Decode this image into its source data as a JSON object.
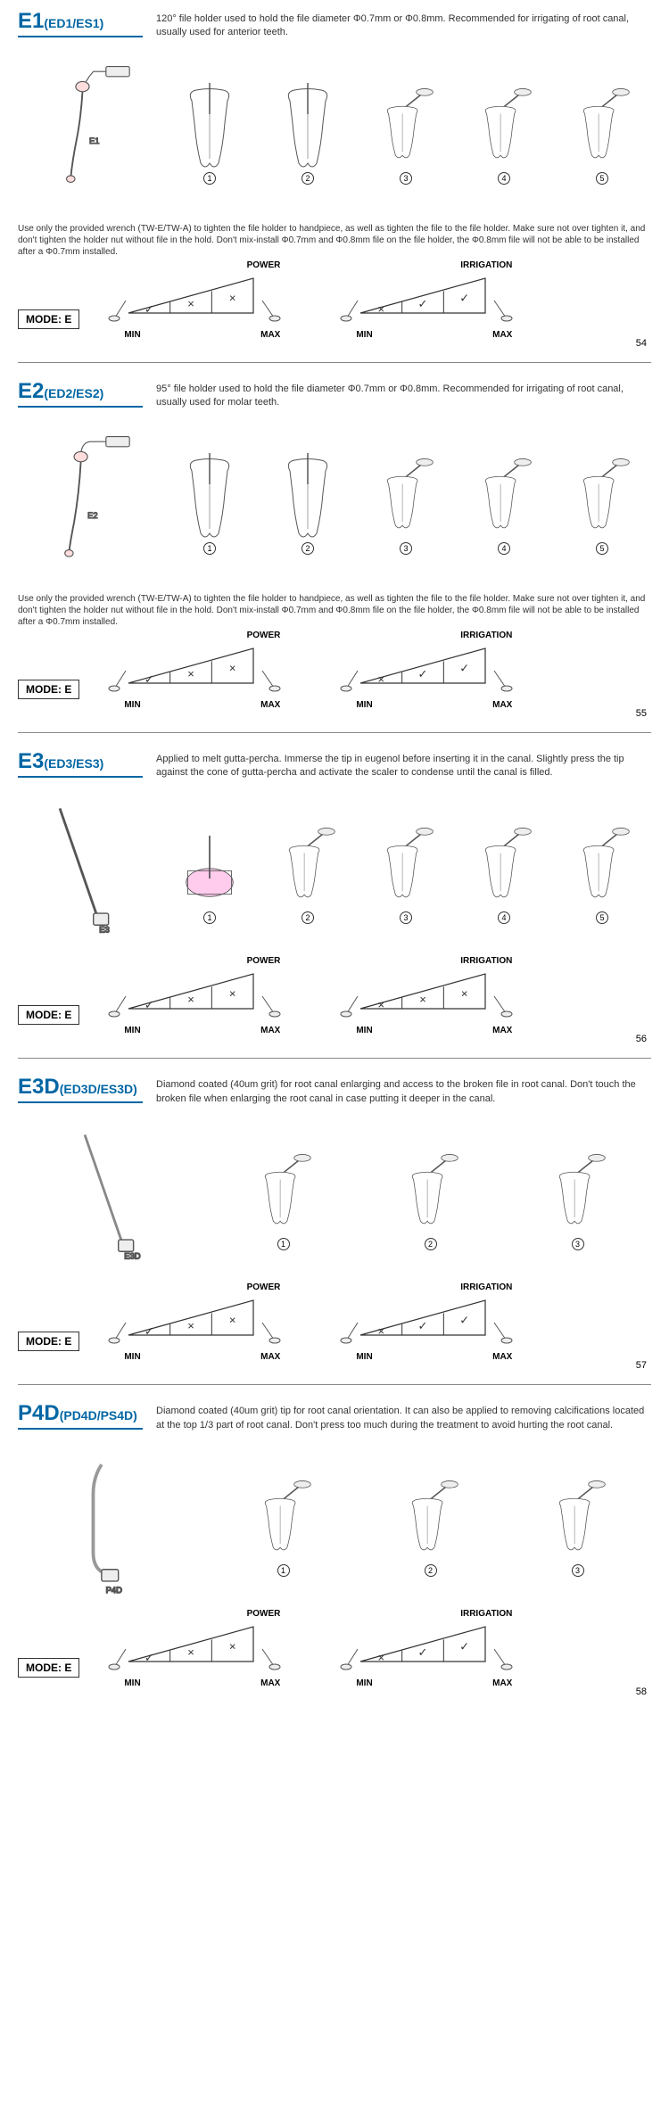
{
  "sections": [
    {
      "id": "e1",
      "title_main": "E1",
      "title_sub": "(ED1/ES1)",
      "description": "120° file holder used to hold the file diameter Φ0.7mm or Φ0.8mm. Recommended for irrigating of root canal, usually used for anterior teeth.",
      "tip_label": "E1",
      "steps": [
        1,
        2,
        3,
        4,
        5
      ],
      "warning": "Use only the provided wrench (TW-E/TW-A) to tighten the file holder to handpiece, as well as tighten the file to the file holder.\nMake sure not over tighten it, and don't tighten the holder nut without file in the hold.\nDon't mix-install Φ0.7mm and Φ0.8mm file on the file holder, the Φ0.8mm file will not be able to be installed after a Φ0.7mm installed.",
      "mode": "MODE: E",
      "power_label": "POWER",
      "irrigation_label": "IRRIGATION",
      "min_label": "MIN",
      "max_label": "MAX",
      "power_marks": [
        "✓",
        "×",
        "×"
      ],
      "irrigation_marks": [
        "×",
        "✓",
        "✓"
      ],
      "page": "54"
    },
    {
      "id": "e2",
      "title_main": "E2",
      "title_sub": "(ED2/ES2)",
      "description": "95° file holder used to hold the file diameter Φ0.7mm or Φ0.8mm. Recommended for irrigating of root canal, usually used for molar teeth.",
      "tip_label": "E2",
      "steps": [
        1,
        2,
        3,
        4,
        5
      ],
      "warning": "Use only the provided wrench (TW-E/TW-A) to tighten the file holder to handpiece, as well as tighten the file to the file holder.\nMake sure not over tighten it, and don't tighten the holder nut without file in the hold.\nDon't mix-install Φ0.7mm and Φ0.8mm file on the file holder, the Φ0.8mm file will not be able to be installed after a Φ0.7mm installed.",
      "mode": "MODE: E",
      "power_label": "POWER",
      "irrigation_label": "IRRIGATION",
      "min_label": "MIN",
      "max_label": "MAX",
      "power_marks": [
        "✓",
        "×",
        "×"
      ],
      "irrigation_marks": [
        "×",
        "✓",
        "✓"
      ],
      "page": "55"
    },
    {
      "id": "e3",
      "title_main": "E3",
      "title_sub": "(ED3/ES3)",
      "description": "Applied to melt gutta-percha. Immerse the tip in eugenol before inserting it in the canal. Slightly press the tip against the cone of gutta-percha and activate the scaler to condense until the canal is filled.",
      "tip_label": "E3",
      "steps": [
        1,
        2,
        3,
        4,
        5
      ],
      "warning": "",
      "mode": "MODE: E",
      "power_label": "POWER",
      "irrigation_label": "IRRIGATION",
      "min_label": "MIN",
      "max_label": "MAX",
      "power_marks": [
        "✓",
        "×",
        "×"
      ],
      "irrigation_marks": [
        "×",
        "×",
        "×"
      ],
      "page": "56"
    },
    {
      "id": "e3d",
      "title_main": "E3D",
      "title_sub": "(ED3D/ES3D)",
      "description": "Diamond coated (40um grit) for root canal enlarging and access to the broken file in root canal. Don't touch the broken file when enlarging the root canal in case putting it deeper in the canal.",
      "tip_label": "E3D",
      "steps": [
        1,
        2,
        3
      ],
      "warning": "",
      "mode": "MODE: E",
      "power_label": "POWER",
      "irrigation_label": "IRRIGATION",
      "min_label": "MIN",
      "max_label": "MAX",
      "power_marks": [
        "✓",
        "×",
        "×"
      ],
      "irrigation_marks": [
        "×",
        "✓",
        "✓"
      ],
      "page": "57"
    },
    {
      "id": "p4d",
      "title_main": "P4D",
      "title_sub": "(PD4D/PS4D)",
      "description": "Diamond coated (40um grit) tip for root canal orientation. It can also be applied to removing calcifications located at the top 1/3 part of root canal.\nDon't press too much during the treatment to avoid hurting the root canal.",
      "tip_label": "P4D",
      "steps": [
        1,
        2,
        3
      ],
      "warning": "",
      "mode": "MODE: E",
      "power_label": "POWER",
      "irrigation_label": "IRRIGATION",
      "min_label": "MIN",
      "max_label": "MAX",
      "power_marks": [
        "✓",
        "×",
        "×"
      ],
      "irrigation_marks": [
        "×",
        "✓",
        "✓"
      ],
      "page": "58"
    }
  ],
  "colors": {
    "brand_blue": "#0066a4",
    "text": "#333333",
    "line": "#555555"
  }
}
